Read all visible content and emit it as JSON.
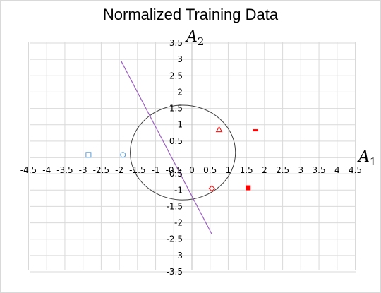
{
  "chart_data": {
    "type": "scatter",
    "title": "Normalized Training Data",
    "xlabel": "A",
    "xlabel_sub": "1",
    "ylabel": "A",
    "ylabel_sub": "2",
    "xlim": [
      -4.5,
      4.5
    ],
    "ylim": [
      -3.5,
      3.5
    ],
    "xstep": 0.5,
    "ystep": 0.5,
    "grid": true,
    "series": [
      {
        "marker": "square-open",
        "color": "#5b9bd5",
        "points": [
          [
            -2.85,
            0.08
          ]
        ]
      },
      {
        "marker": "circle-open",
        "color": "#5b9bd5",
        "points": [
          [
            -1.9,
            0.08
          ]
        ]
      },
      {
        "marker": "triangle-open",
        "color": "#ff0000",
        "points": [
          [
            0.75,
            0.85
          ]
        ]
      },
      {
        "marker": "dash",
        "color": "#ff0000",
        "points": [
          [
            1.75,
            0.83
          ]
        ]
      },
      {
        "marker": "diamond-open",
        "color": "#ff0000",
        "points": [
          [
            0.55,
            -0.95
          ]
        ]
      },
      {
        "marker": "square-filled",
        "color": "#ff0000",
        "points": [
          [
            1.55,
            -0.93
          ]
        ]
      }
    ],
    "shapes": [
      {
        "type": "circle",
        "center": [
          -0.25,
          0.15
        ],
        "radius": 1.45,
        "color": "#404040"
      },
      {
        "type": "line",
        "points": [
          [
            -1.95,
            2.95
          ],
          [
            0.55,
            -2.35
          ]
        ],
        "color": "#9b5fc0"
      }
    ]
  }
}
